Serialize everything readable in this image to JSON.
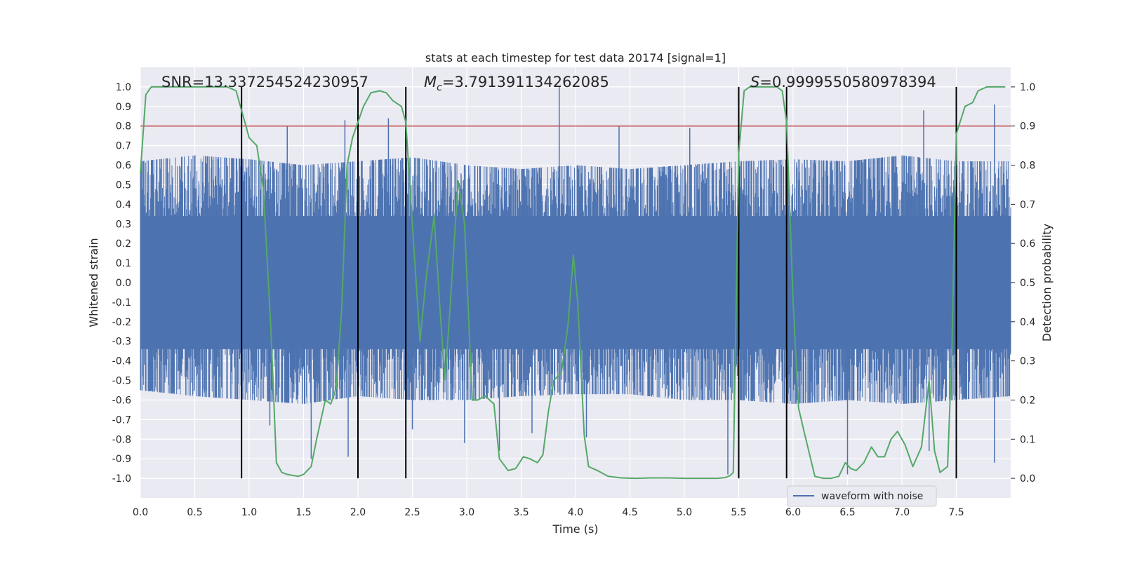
{
  "chart_data": {
    "type": "line",
    "title": "stats at each timestep for test data 20174 [signal=1]",
    "xlabel": "Time (s)",
    "ylabel": "Whitened strain",
    "y2label": "Detection probability",
    "xlim": [
      0.0,
      8.0
    ],
    "ylim": [
      -1.1,
      1.1
    ],
    "y2lim": [
      -0.05,
      1.05
    ],
    "xticks": [
      "0.0",
      "0.5",
      "1.0",
      "1.5",
      "2.0",
      "2.5",
      "3.0",
      "3.5",
      "4.0",
      "4.5",
      "5.0",
      "5.5",
      "6.0",
      "6.5",
      "7.0",
      "7.5"
    ],
    "yticks": [
      "1.0",
      "0.9",
      "0.8",
      "0.7",
      "0.6",
      "0.5",
      "0.4",
      "0.3",
      "0.2",
      "0.1",
      "0.0",
      "-0.1",
      "-0.2",
      "-0.3",
      "-0.4",
      "-0.5",
      "-0.6",
      "-0.7",
      "-0.8",
      "-0.9",
      "-1.0"
    ],
    "y2ticks": [
      "1.0",
      "0.9",
      "0.8",
      "0.7",
      "0.6",
      "0.5",
      "0.4",
      "0.3",
      "0.2",
      "0.1",
      "0.0"
    ],
    "grid": true,
    "legend_location": "lower-right",
    "annotations": {
      "snr": "SNR=13.337254524230957",
      "mc": "=3.791391134262085",
      "mc_symbol": "M",
      "mc_sub": "c",
      "s": "=0.9999550580978394",
      "s_symbol": "S"
    },
    "threshold": {
      "y2": 0.9,
      "color": "#c44e52"
    },
    "vertical_lines": [
      0.93,
      2.0,
      2.44,
      5.5,
      5.94,
      7.5
    ],
    "series": [
      {
        "name": "waveform with noise",
        "color": "#4c72b0",
        "axis": "left",
        "envelope": {
          "x": [
            0.0,
            0.5,
            1.0,
            1.5,
            2.0,
            2.5,
            3.0,
            3.5,
            4.0,
            4.5,
            5.0,
            5.5,
            6.0,
            6.5,
            7.0,
            7.5,
            8.0
          ],
          "upper": [
            0.62,
            0.65,
            0.63,
            0.6,
            0.62,
            0.64,
            0.6,
            0.58,
            0.6,
            0.58,
            0.6,
            0.62,
            0.63,
            0.62,
            0.65,
            0.62,
            0.62
          ],
          "lower": [
            -0.55,
            -0.58,
            -0.6,
            -0.62,
            -0.58,
            -0.6,
            -0.6,
            -0.58,
            -0.57,
            -0.57,
            -0.6,
            -0.6,
            -0.62,
            -0.6,
            -0.62,
            -0.6,
            -0.58
          ]
        },
        "spikes": [
          {
            "x": 1.35,
            "y": 0.8
          },
          {
            "x": 1.88,
            "y": 0.83
          },
          {
            "x": 2.28,
            "y": 0.84
          },
          {
            "x": 3.85,
            "y": 1.0
          },
          {
            "x": 4.4,
            "y": 0.8
          },
          {
            "x": 5.05,
            "y": 0.79
          },
          {
            "x": 7.2,
            "y": 0.88
          },
          {
            "x": 7.85,
            "y": 0.91
          },
          {
            "x": 1.19,
            "y": -0.73
          },
          {
            "x": 1.57,
            "y": -0.9
          },
          {
            "x": 1.91,
            "y": -0.89
          },
          {
            "x": 2.5,
            "y": -0.75
          },
          {
            "x": 2.98,
            "y": -0.82
          },
          {
            "x": 3.3,
            "y": -0.86
          },
          {
            "x": 3.6,
            "y": -0.77
          },
          {
            "x": 4.1,
            "y": -0.79
          },
          {
            "x": 5.4,
            "y": -0.98
          },
          {
            "x": 6.5,
            "y": -0.98
          },
          {
            "x": 7.25,
            "y": -0.86
          },
          {
            "x": 7.85,
            "y": -0.92
          }
        ]
      },
      {
        "name": "Detection probability",
        "color": "#55a868",
        "axis": "right",
        "x": [
          0.0,
          0.05,
          0.1,
          0.2,
          0.3,
          0.4,
          0.5,
          0.6,
          0.7,
          0.8,
          0.88,
          0.93,
          1.0,
          1.07,
          1.13,
          1.2,
          1.25,
          1.3,
          1.35,
          1.45,
          1.5,
          1.57,
          1.62,
          1.7,
          1.75,
          1.8,
          1.85,
          1.9,
          1.95,
          2.0,
          2.05,
          2.12,
          2.2,
          2.26,
          2.32,
          2.4,
          2.44,
          2.5,
          2.57,
          2.63,
          2.7,
          2.75,
          2.8,
          2.85,
          2.92,
          2.98,
          3.05,
          3.1,
          3.17,
          3.25,
          3.3,
          3.38,
          3.45,
          3.52,
          3.58,
          3.65,
          3.7,
          3.75,
          3.8,
          3.87,
          3.93,
          3.98,
          4.02,
          4.08,
          4.12,
          4.2,
          4.3,
          4.42,
          4.55,
          4.7,
          4.85,
          5.0,
          5.15,
          5.3,
          5.38,
          5.42,
          5.45,
          5.5,
          5.55,
          5.6,
          5.75,
          5.85,
          5.9,
          5.94,
          6.0,
          6.05,
          6.1,
          6.2,
          6.28,
          6.35,
          6.42,
          6.48,
          6.53,
          6.58,
          6.65,
          6.72,
          6.78,
          6.84,
          6.9,
          6.96,
          7.03,
          7.1,
          7.18,
          7.25,
          7.3,
          7.35,
          7.42,
          7.46,
          7.5,
          7.58,
          7.65,
          7.7,
          7.78,
          7.83,
          7.95
        ],
        "y": [
          0.78,
          0.98,
          1.0,
          1.0,
          1.0,
          1.0,
          1.0,
          1.0,
          1.0,
          1.0,
          0.99,
          0.94,
          0.87,
          0.85,
          0.74,
          0.38,
          0.04,
          0.015,
          0.01,
          0.005,
          0.01,
          0.03,
          0.1,
          0.2,
          0.19,
          0.23,
          0.43,
          0.8,
          0.87,
          0.91,
          0.95,
          0.985,
          0.99,
          0.985,
          0.965,
          0.95,
          0.91,
          0.65,
          0.35,
          0.52,
          0.67,
          0.45,
          0.25,
          0.45,
          0.76,
          0.65,
          0.2,
          0.2,
          0.21,
          0.19,
          0.05,
          0.02,
          0.025,
          0.055,
          0.05,
          0.04,
          0.06,
          0.17,
          0.25,
          0.27,
          0.39,
          0.57,
          0.45,
          0.11,
          0.03,
          0.02,
          0.005,
          0.001,
          0.0,
          0.001,
          0.001,
          0.0,
          0.0,
          0.0,
          0.002,
          0.007,
          0.015,
          0.83,
          0.99,
          1.0,
          1.0,
          1.0,
          0.99,
          0.91,
          0.45,
          0.18,
          0.12,
          0.005,
          0.0,
          0.0,
          0.005,
          0.04,
          0.025,
          0.02,
          0.04,
          0.08,
          0.055,
          0.055,
          0.1,
          0.12,
          0.085,
          0.03,
          0.08,
          0.25,
          0.07,
          0.015,
          0.03,
          0.33,
          0.88,
          0.95,
          0.96,
          0.99,
          1.0,
          1.0,
          1.0
        ]
      }
    ]
  }
}
